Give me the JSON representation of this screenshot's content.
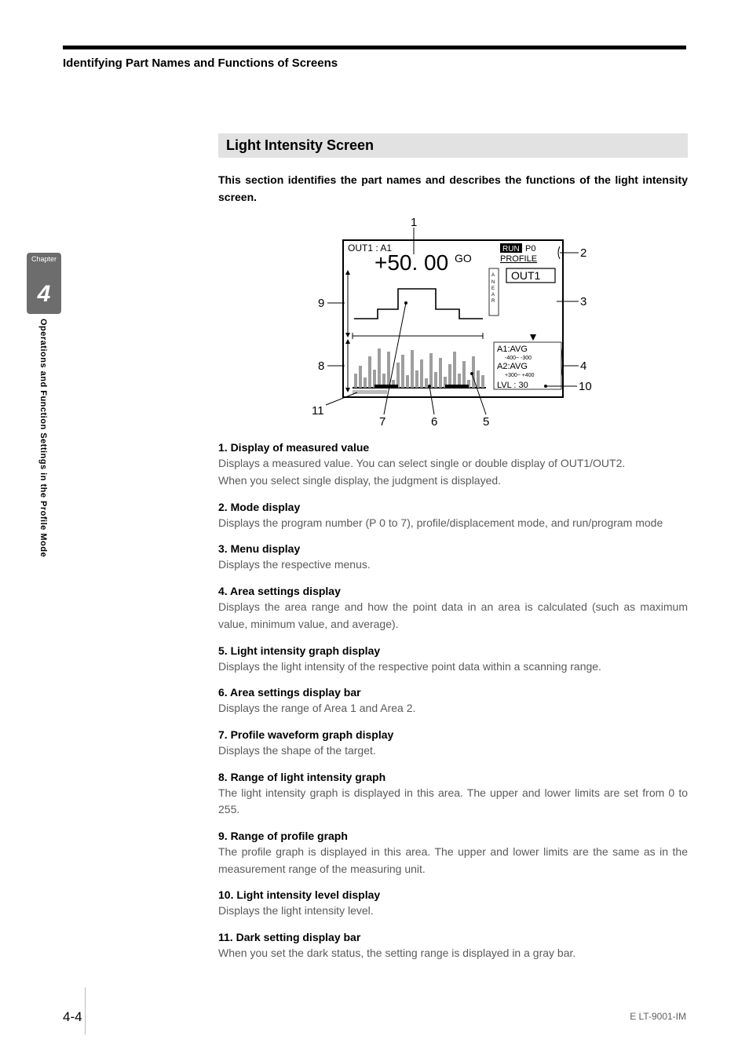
{
  "running_head": "Identifying Part Names and Functions of Screens",
  "side": {
    "chapter_label": "Chapter",
    "chapter_number": "4",
    "side_title": "Operations and Function Settings in the Profile Mode"
  },
  "section_title": "Light Intensity Screen",
  "intro": "This section identifies the part names and describes the functions of the light intensity screen.",
  "diagram": {
    "callouts": [
      "1",
      "2",
      "3",
      "4",
      "5",
      "6",
      "7",
      "8",
      "9",
      "10",
      "11"
    ],
    "screen": {
      "out_label": "OUT1 : A1",
      "measured_value": "+50. 00",
      "judgment": "GO",
      "mode_run": "RUN",
      "mode_p": "P0",
      "mode_profile": "PROFILE",
      "menu_out": "OUT1",
      "a1": "A1:AVG",
      "a1_range": "-400~  -300",
      "a2": "A2:AVG",
      "a2_range": "+300~  +400",
      "lvl": "LVL  : 30",
      "near_label": "A NEAR"
    },
    "colors": {
      "frame": "#000000",
      "bg": "#ffffff",
      "profile_line": "#000000",
      "intensity_fill": "#9e9e9e",
      "dark_bar": "#bdbdbd",
      "callout_text": "#000000",
      "run_bg": "#000000",
      "run_fg": "#ffffff"
    }
  },
  "items": [
    {
      "title": "1. Display of measured value",
      "desc": "Displays a measured value. You can select single or double display of OUT1/OUT2.\nWhen you select single display, the judgment is displayed."
    },
    {
      "title": "2. Mode display",
      "desc": "Displays the program number (P 0 to 7), profile/displacement mode, and run/program mode"
    },
    {
      "title": "3. Menu display",
      "desc": "Displays the respective menus."
    },
    {
      "title": "4. Area settings display",
      "desc": "Displays the area range and how the point data in an area is calculated (such as maximum value, minimum value, and average)."
    },
    {
      "title": "5. Light intensity graph display",
      "desc": "Displays the light intensity of the respective point data within a scanning range."
    },
    {
      "title": "6. Area settings display bar",
      "desc": "Displays the range of Area 1 and Area 2."
    },
    {
      "title": "7. Profile waveform graph display",
      "desc": "Displays the shape of the target."
    },
    {
      "title": "8. Range of light intensity graph",
      "desc": "The light intensity graph is displayed in this area. The upper and lower limits are set from 0 to 255."
    },
    {
      "title": "9. Range of profile graph",
      "desc": "The profile graph is displayed in this area. The upper and lower limits are the same as in the measurement range of the measuring unit."
    },
    {
      "title": "10. Light intensity level display",
      "desc": "Displays the light intensity level."
    },
    {
      "title": "11. Dark setting display bar",
      "desc": "When you set the dark status, the setting range is displayed in a gray bar."
    }
  ],
  "footer": {
    "page": "4-4",
    "doc": "E LT-9001-IM"
  }
}
